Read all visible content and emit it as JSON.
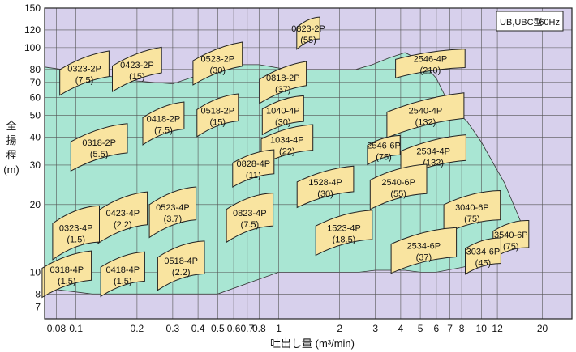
{
  "chart_data": {
    "type": "area",
    "title": "",
    "legend_box": {
      "series": "UB,UBC型",
      "frequency": "60Hz"
    },
    "xlabel": "吐出し量 (m³/min)",
    "ylabel": [
      "全",
      "揚",
      "程",
      "(m)"
    ],
    "x_scale": "log",
    "y_scale": "log",
    "xlim": [
      0.07,
      28
    ],
    "ylim": [
      6.2,
      150
    ],
    "x_ticks": [
      {
        "v": 0.08,
        "label": "0.08"
      },
      {
        "v": 0.1,
        "label": "0.1"
      },
      {
        "v": 0.2,
        "label": "0.2"
      },
      {
        "v": 0.3,
        "label": "0.3"
      },
      {
        "v": 0.4,
        "label": "0.4"
      },
      {
        "v": 0.5,
        "label": "0.5"
      },
      {
        "v": 0.6,
        "label": "0.6"
      },
      {
        "v": 0.7,
        "label": "0.7"
      },
      {
        "v": 0.8,
        "label": "0.8"
      },
      {
        "v": 1,
        "label": "1"
      },
      {
        "v": 2,
        "label": "2"
      },
      {
        "v": 3,
        "label": "3"
      },
      {
        "v": 4,
        "label": "4"
      },
      {
        "v": 5,
        "label": "5"
      },
      {
        "v": 6,
        "label": "6"
      },
      {
        "v": 7,
        "label": "7"
      },
      {
        "v": 8,
        "label": "8"
      },
      {
        "v": 10,
        "label": "10"
      },
      {
        "v": 12,
        "label": "12"
      },
      {
        "v": 20,
        "label": "20"
      }
    ],
    "y_ticks": [
      {
        "v": 7,
        "label": "7"
      },
      {
        "v": 8,
        "label": "8"
      },
      {
        "v": 10,
        "label": "10"
      },
      {
        "v": 20,
        "label": "20"
      },
      {
        "v": 30,
        "label": "30"
      },
      {
        "v": 40,
        "label": "40"
      },
      {
        "v": 50,
        "label": "50"
      },
      {
        "v": 60,
        "label": "60"
      },
      {
        "v": 70,
        "label": "70"
      },
      {
        "v": 80,
        "label": "80"
      },
      {
        "v": 100,
        "label": "100"
      },
      {
        "v": 120,
        "label": "120"
      },
      {
        "v": 150,
        "label": "150"
      }
    ],
    "grid": true,
    "colors": {
      "background": "#d7d0ec",
      "envelope": "#a9e6d3",
      "zone": "#f9e4a0",
      "border": "#222222"
    },
    "envelope": [
      [
        0.07,
        82
      ],
      [
        0.14,
        75
      ],
      [
        0.2,
        71
      ],
      [
        0.3,
        69
      ],
      [
        0.45,
        78
      ],
      [
        0.6,
        84
      ],
      [
        0.8,
        84
      ],
      [
        1.1,
        80
      ],
      [
        1.5,
        80
      ],
      [
        2.0,
        80
      ],
      [
        2.4,
        80
      ],
      [
        2.9,
        84
      ],
      [
        3.5,
        90
      ],
      [
        4.2,
        95
      ],
      [
        5.0,
        88
      ],
      [
        6.0,
        73
      ],
      [
        7.0,
        55
      ],
      [
        8.5,
        47
      ],
      [
        10,
        38
      ],
      [
        13,
        25
      ],
      [
        16,
        16
      ],
      [
        14,
        14
      ],
      [
        12,
        12
      ],
      [
        10,
        11
      ],
      [
        8,
        10.5
      ],
      [
        6,
        10
      ],
      [
        5,
        10
      ],
      [
        4.2,
        10.2
      ],
      [
        3,
        10.2
      ],
      [
        2.5,
        10
      ],
      [
        1.5,
        10
      ],
      [
        1.0,
        10
      ],
      [
        0.5,
        8
      ],
      [
        0.3,
        8
      ],
      [
        0.12,
        8
      ],
      [
        0.07,
        8.5
      ]
    ],
    "zones": [
      {
        "model": "0823-2P",
        "kw": "(55)",
        "q": 1.4,
        "h": 116,
        "w": 1.3,
        "ht": 1.25,
        "sk": -0.45
      },
      {
        "model": "2546-4P",
        "kw": "(210)",
        "q": 5.6,
        "h": 85,
        "w": 2.2,
        "ht": 1.21,
        "sk": -0.15
      },
      {
        "model": "0323-2P",
        "kw": "(7.5)",
        "q": 0.11,
        "h": 77,
        "w": 1.75,
        "ht": 1.3,
        "sk": -0.38
      },
      {
        "model": "0423-2P",
        "kw": "(15)",
        "q": 0.2,
        "h": 80,
        "w": 1.75,
        "ht": 1.3,
        "sk": -0.38
      },
      {
        "model": "0523-2P",
        "kw": "(30)",
        "q": 0.5,
        "h": 85,
        "w": 1.75,
        "ht": 1.28,
        "sk": -0.38
      },
      {
        "model": "0818-2P",
        "kw": "(37)",
        "q": 1.05,
        "h": 70,
        "w": 1.7,
        "ht": 1.28,
        "sk": -0.38
      },
      {
        "model": "0518-2P",
        "kw": "(15)",
        "q": 0.5,
        "h": 50,
        "w": 1.6,
        "ht": 1.32,
        "sk": -0.38
      },
      {
        "model": "0418-2P",
        "kw": "(7.5)",
        "q": 0.27,
        "h": 46,
        "w": 1.6,
        "ht": 1.32,
        "sk": -0.38
      },
      {
        "model": "1040-4P",
        "kw": "(30)",
        "q": 1.05,
        "h": 50,
        "w": 1.6,
        "ht": 1.3,
        "sk": -0.32
      },
      {
        "model": "2540-4P",
        "kw": "(132)",
        "q": 5.3,
        "h": 50,
        "w": 2.4,
        "ht": 1.3,
        "sk": -0.25
      },
      {
        "model": "0318-2P",
        "kw": "(5.5)",
        "q": 0.13,
        "h": 36,
        "w": 1.9,
        "ht": 1.35,
        "sk": -0.32
      },
      {
        "model": "1034-4P",
        "kw": "(22)",
        "q": 1.1,
        "h": 37,
        "w": 1.8,
        "ht": 1.3,
        "sk": -0.28
      },
      {
        "model": "2546-6P",
        "kw": "(75)",
        "q": 3.3,
        "h": 35,
        "w": 1.45,
        "ht": 1.22,
        "sk": -0.3
      },
      {
        "model": "2534-4P",
        "kw": "(132)",
        "q": 5.8,
        "h": 33,
        "w": 2.1,
        "ht": 1.3,
        "sk": -0.25
      },
      {
        "model": "0828-4P",
        "kw": "(11)",
        "q": 0.75,
        "h": 29,
        "w": 1.6,
        "ht": 1.28,
        "sk": -0.32
      },
      {
        "model": "2540-6P",
        "kw": "(55)",
        "q": 3.9,
        "h": 24,
        "w": 1.9,
        "ht": 1.35,
        "sk": -0.28
      },
      {
        "model": "1528-4P",
        "kw": "(30)",
        "q": 1.7,
        "h": 24,
        "w": 1.9,
        "ht": 1.3,
        "sk": -0.28
      },
      {
        "model": "0523-4P",
        "kw": "(3.7)",
        "q": 0.3,
        "h": 18.5,
        "w": 1.7,
        "ht": 1.4,
        "sk": -0.38
      },
      {
        "model": "0423-4P",
        "kw": "(2.2)",
        "q": 0.17,
        "h": 17.5,
        "w": 1.75,
        "ht": 1.4,
        "sk": -0.38
      },
      {
        "model": "0823-4P",
        "kw": "(7.5)",
        "q": 0.72,
        "h": 17.5,
        "w": 1.7,
        "ht": 1.4,
        "sk": -0.35
      },
      {
        "model": "3040-6P",
        "kw": "(75)",
        "q": 9.0,
        "h": 18.5,
        "w": 1.9,
        "ht": 1.35,
        "sk": -0.25
      },
      {
        "model": "0323-4P",
        "kw": "(1.5)",
        "q": 0.1,
        "h": 15,
        "w": 1.7,
        "ht": 1.45,
        "sk": -0.38
      },
      {
        "model": "1523-4P",
        "kw": "(18.5)",
        "q": 2.1,
        "h": 15,
        "w": 1.9,
        "ht": 1.35,
        "sk": -0.28
      },
      {
        "model": "3540-6P",
        "kw": "(75)",
        "q": 14,
        "h": 14,
        "w": 1.5,
        "ht": 1.32,
        "sk": -0.3
      },
      {
        "model": "2534-6P",
        "kw": "(37)",
        "q": 5.2,
        "h": 12.5,
        "w": 2.1,
        "ht": 1.35,
        "sk": -0.25
      },
      {
        "model": "3034-6P",
        "kw": "(45)",
        "q": 10.2,
        "h": 11.8,
        "w": 1.5,
        "ht": 1.3,
        "sk": -0.3
      },
      {
        "model": "0518-4P",
        "kw": "(2.2)",
        "q": 0.33,
        "h": 10.7,
        "w": 1.7,
        "ht": 1.4,
        "sk": -0.35
      },
      {
        "model": "0318-4P",
        "kw": "(1.5)",
        "q": 0.09,
        "h": 9.8,
        "w": 1.75,
        "ht": 1.35,
        "sk": -0.35
      },
      {
        "model": "0418-4P",
        "kw": "(1.5)",
        "q": 0.17,
        "h": 9.8,
        "w": 1.65,
        "ht": 1.35,
        "sk": -0.35
      }
    ]
  }
}
